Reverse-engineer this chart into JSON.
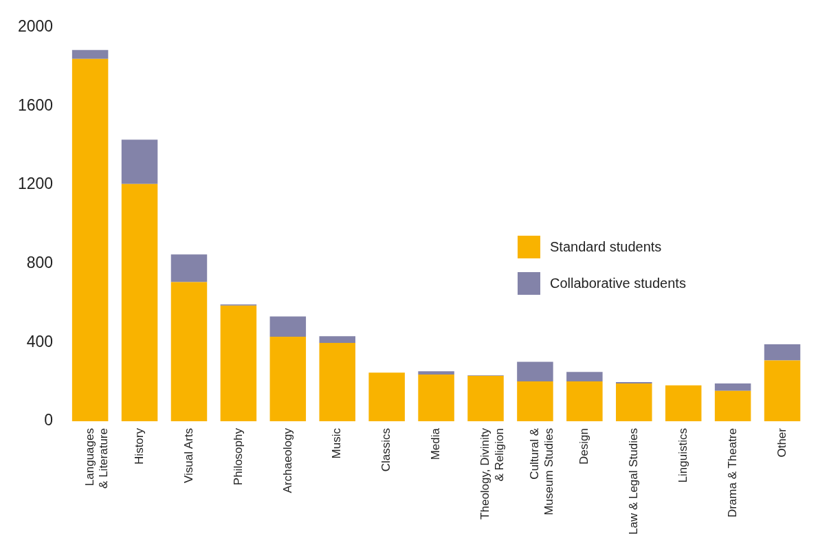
{
  "chart_data": {
    "type": "bar",
    "stacked": true,
    "legend": "right",
    "grid": false,
    "categories": [
      "Languages\n& Literature",
      "History",
      "Visual Arts",
      "Philosophy",
      "Archaeology",
      "Music",
      "Classics",
      "Media",
      "Theology, Divinity\n& Religion",
      "Cultural &\nMuseum Studies",
      "Design",
      "Law & Legal Studies",
      "Linguistics",
      "Drama & Theatre",
      "Other"
    ],
    "series": [
      {
        "name": "Standard students",
        "color": "#f9b300",
        "values": [
          1840,
          1205,
          707,
          587,
          429,
          398,
          247,
          237,
          230,
          202,
          202,
          192,
          182,
          154,
          309
        ]
      },
      {
        "name": "Collaborative students",
        "color": "#8383a9",
        "values": [
          45,
          225,
          140,
          6,
          103,
          34,
          0,
          17,
          3,
          100,
          48,
          7,
          0,
          38,
          82
        ]
      }
    ],
    "ylim": [
      0,
      2000
    ],
    "yticks": [
      0,
      400,
      800,
      1200,
      1600,
      2000
    ]
  }
}
